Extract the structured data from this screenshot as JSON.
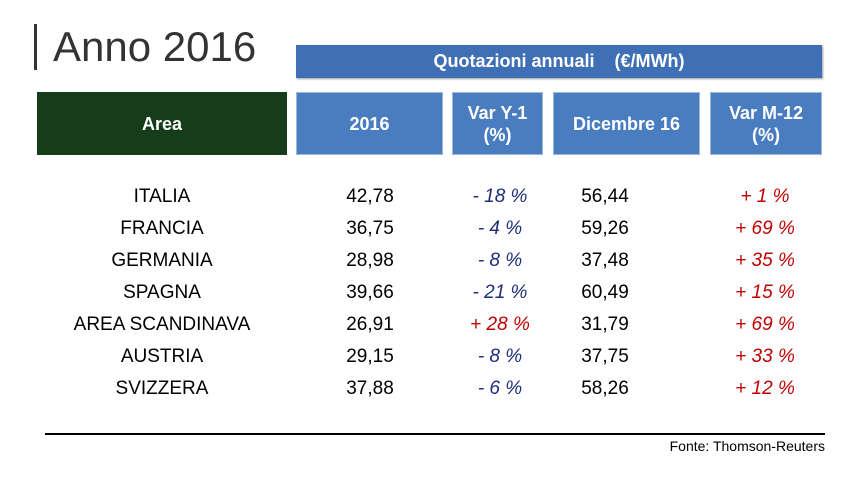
{
  "title": "Anno 2016",
  "banner": "Quotazioni annuali    (€/MWh)",
  "table": {
    "columns": [
      [
        "Area"
      ],
      [
        "2016"
      ],
      [
        "Var Y-1",
        "(%)"
      ],
      [
        "Dicembre 16"
      ],
      [
        "Var M-12",
        "(%)"
      ]
    ],
    "rows": [
      [
        "ITALIA",
        "42,78",
        "- 18 %",
        "56,44",
        "+ 1 %"
      ],
      [
        "FRANCIA",
        "36,75",
        "- 4 %",
        "59,26",
        "+ 69 %"
      ],
      [
        "GERMANIA",
        "28,98",
        "- 8 %",
        "37,48",
        "+ 35 %"
      ],
      [
        "SPAGNA",
        "39,66",
        "- 21 %",
        "60,49",
        "+ 15 %"
      ],
      [
        "AREA SCANDINAVA",
        "26,91",
        "+ 28 %",
        "31,79",
        "+ 69 %"
      ],
      [
        "AUSTRIA",
        "29,15",
        "- 8 %",
        "37,75",
        "+ 33 %"
      ],
      [
        "SVIZZERA",
        "37,88",
        "- 6 %",
        "58,26",
        "+ 12 %"
      ]
    ],
    "positive_color": "#c00000",
    "negative_color": "#1f2d7a"
  },
  "source": "Fonte: Thomson-Reuters"
}
